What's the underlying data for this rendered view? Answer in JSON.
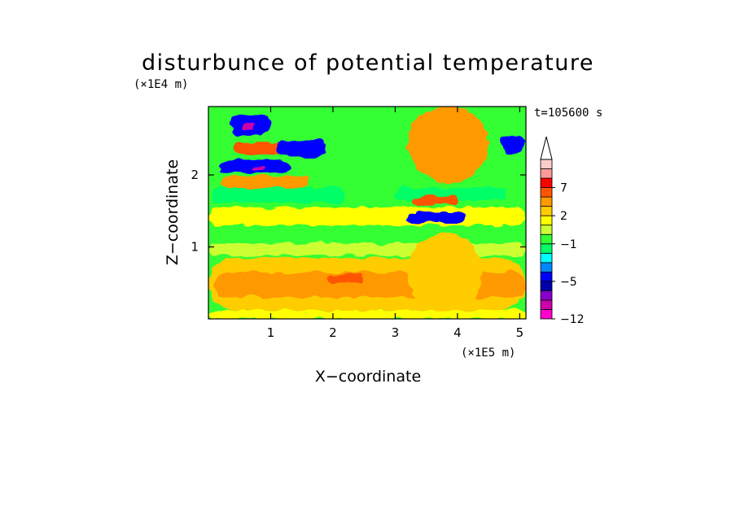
{
  "chart_data": {
    "type": "heatmap",
    "title": "disturbunce of potential temperature",
    "xlabel": "X−coordinate",
    "ylabel": "Z−coordinate",
    "x_unit": "(×1E5 m)",
    "y_unit": "(×1E4 m)",
    "time_label": "t=105600 s",
    "xlim": [
      0,
      5.1
    ],
    "ylim": [
      0,
      2.95
    ],
    "x_ticks": [
      1,
      2,
      3,
      4,
      5
    ],
    "y_ticks": [
      1,
      2
    ],
    "x_tick_labels": [
      "1",
      "2",
      "3",
      "4",
      "5"
    ],
    "y_tick_labels": [
      "1",
      "2"
    ],
    "colorbar": {
      "levels": [
        -12,
        -10,
        -8,
        -6,
        -5,
        -4,
        -3,
        -2,
        -1,
        0,
        1,
        2,
        3,
        5,
        7,
        9,
        11
      ],
      "tick_values": [
        -12,
        -5,
        -1,
        2,
        7
      ],
      "tick_labels": [
        "−12",
        "−5",
        "−1",
        "2",
        "7"
      ],
      "colors": [
        "#ff00cc",
        "#cc00aa",
        "#8800cc",
        "#0000aa",
        "#0000ff",
        "#0088ff",
        "#00ffff",
        "#00ff66",
        "#33ff33",
        "#ccff33",
        "#ffff00",
        "#ffcc00",
        "#ff9900",
        "#ff5500",
        "#ff0000",
        "#ff9999",
        "#ffcccc"
      ],
      "extend": "max"
    },
    "field": {
      "background_color": "#33ff33",
      "features": [
        {
          "x": [
            0,
            5.1
          ],
          "z": [
            0.0,
            0.12
          ],
          "value": 1.5
        },
        {
          "x": [
            0,
            5.1
          ],
          "z": [
            0.12,
            0.85
          ],
          "value": 2.4
        },
        {
          "x": [
            0.1,
            5.1
          ],
          "z": [
            0.3,
            0.65
          ],
          "value": 3.5
        },
        {
          "x": [
            1.9,
            2.5
          ],
          "z": [
            0.5,
            0.62
          ],
          "value": 5.5
        },
        {
          "x": [
            0,
            5.1
          ],
          "z": [
            0.88,
            1.05
          ],
          "value": 0.4
        },
        {
          "x": [
            0,
            5.1
          ],
          "z": [
            1.3,
            1.55
          ],
          "value": 1.5
        },
        {
          "x": [
            0.05,
            2.2
          ],
          "z": [
            1.62,
            1.82
          ],
          "value": -1.5
        },
        {
          "x": [
            3.0,
            4.8
          ],
          "z": [
            1.65,
            1.82
          ],
          "value": -1.5
        },
        {
          "x": [
            3.2,
            4.1
          ],
          "z": [
            1.34,
            1.48
          ],
          "value": -4.5
        },
        {
          "x": [
            3.3,
            4.0
          ],
          "z": [
            1.58,
            1.7
          ],
          "value": 5.5
        },
        {
          "x": [
            0.2,
            1.6
          ],
          "z": [
            1.82,
            1.98
          ],
          "value": 3.5
        },
        {
          "x": [
            0.2,
            1.3
          ],
          "z": [
            2.02,
            2.2
          ],
          "value": -4.5
        },
        {
          "x": [
            0.7,
            0.9
          ],
          "z": [
            2.08,
            2.14
          ],
          "value": -9.0
        },
        {
          "x": [
            0.4,
            1.3
          ],
          "z": [
            2.28,
            2.45
          ],
          "value": 5.5
        },
        {
          "x": [
            1.1,
            1.9
          ],
          "z": [
            2.25,
            2.48
          ],
          "value": -4.5
        },
        {
          "x": [
            0.35,
            1.0
          ],
          "z": [
            2.55,
            2.85
          ],
          "value": -4.5
        },
        {
          "x": [
            0.55,
            0.75
          ],
          "z": [
            2.62,
            2.72
          ],
          "value": -9.0
        },
        {
          "x": [
            3.2,
            4.5
          ],
          "z": [
            1.9,
            2.95
          ],
          "value": 3.5
        },
        {
          "x": [
            4.7,
            5.1
          ],
          "z": [
            2.3,
            2.55
          ],
          "value": -4.5
        },
        {
          "x": [
            3.2,
            4.4
          ],
          "z": [
            0.1,
            1.2
          ],
          "value": 2.4
        }
      ]
    }
  }
}
